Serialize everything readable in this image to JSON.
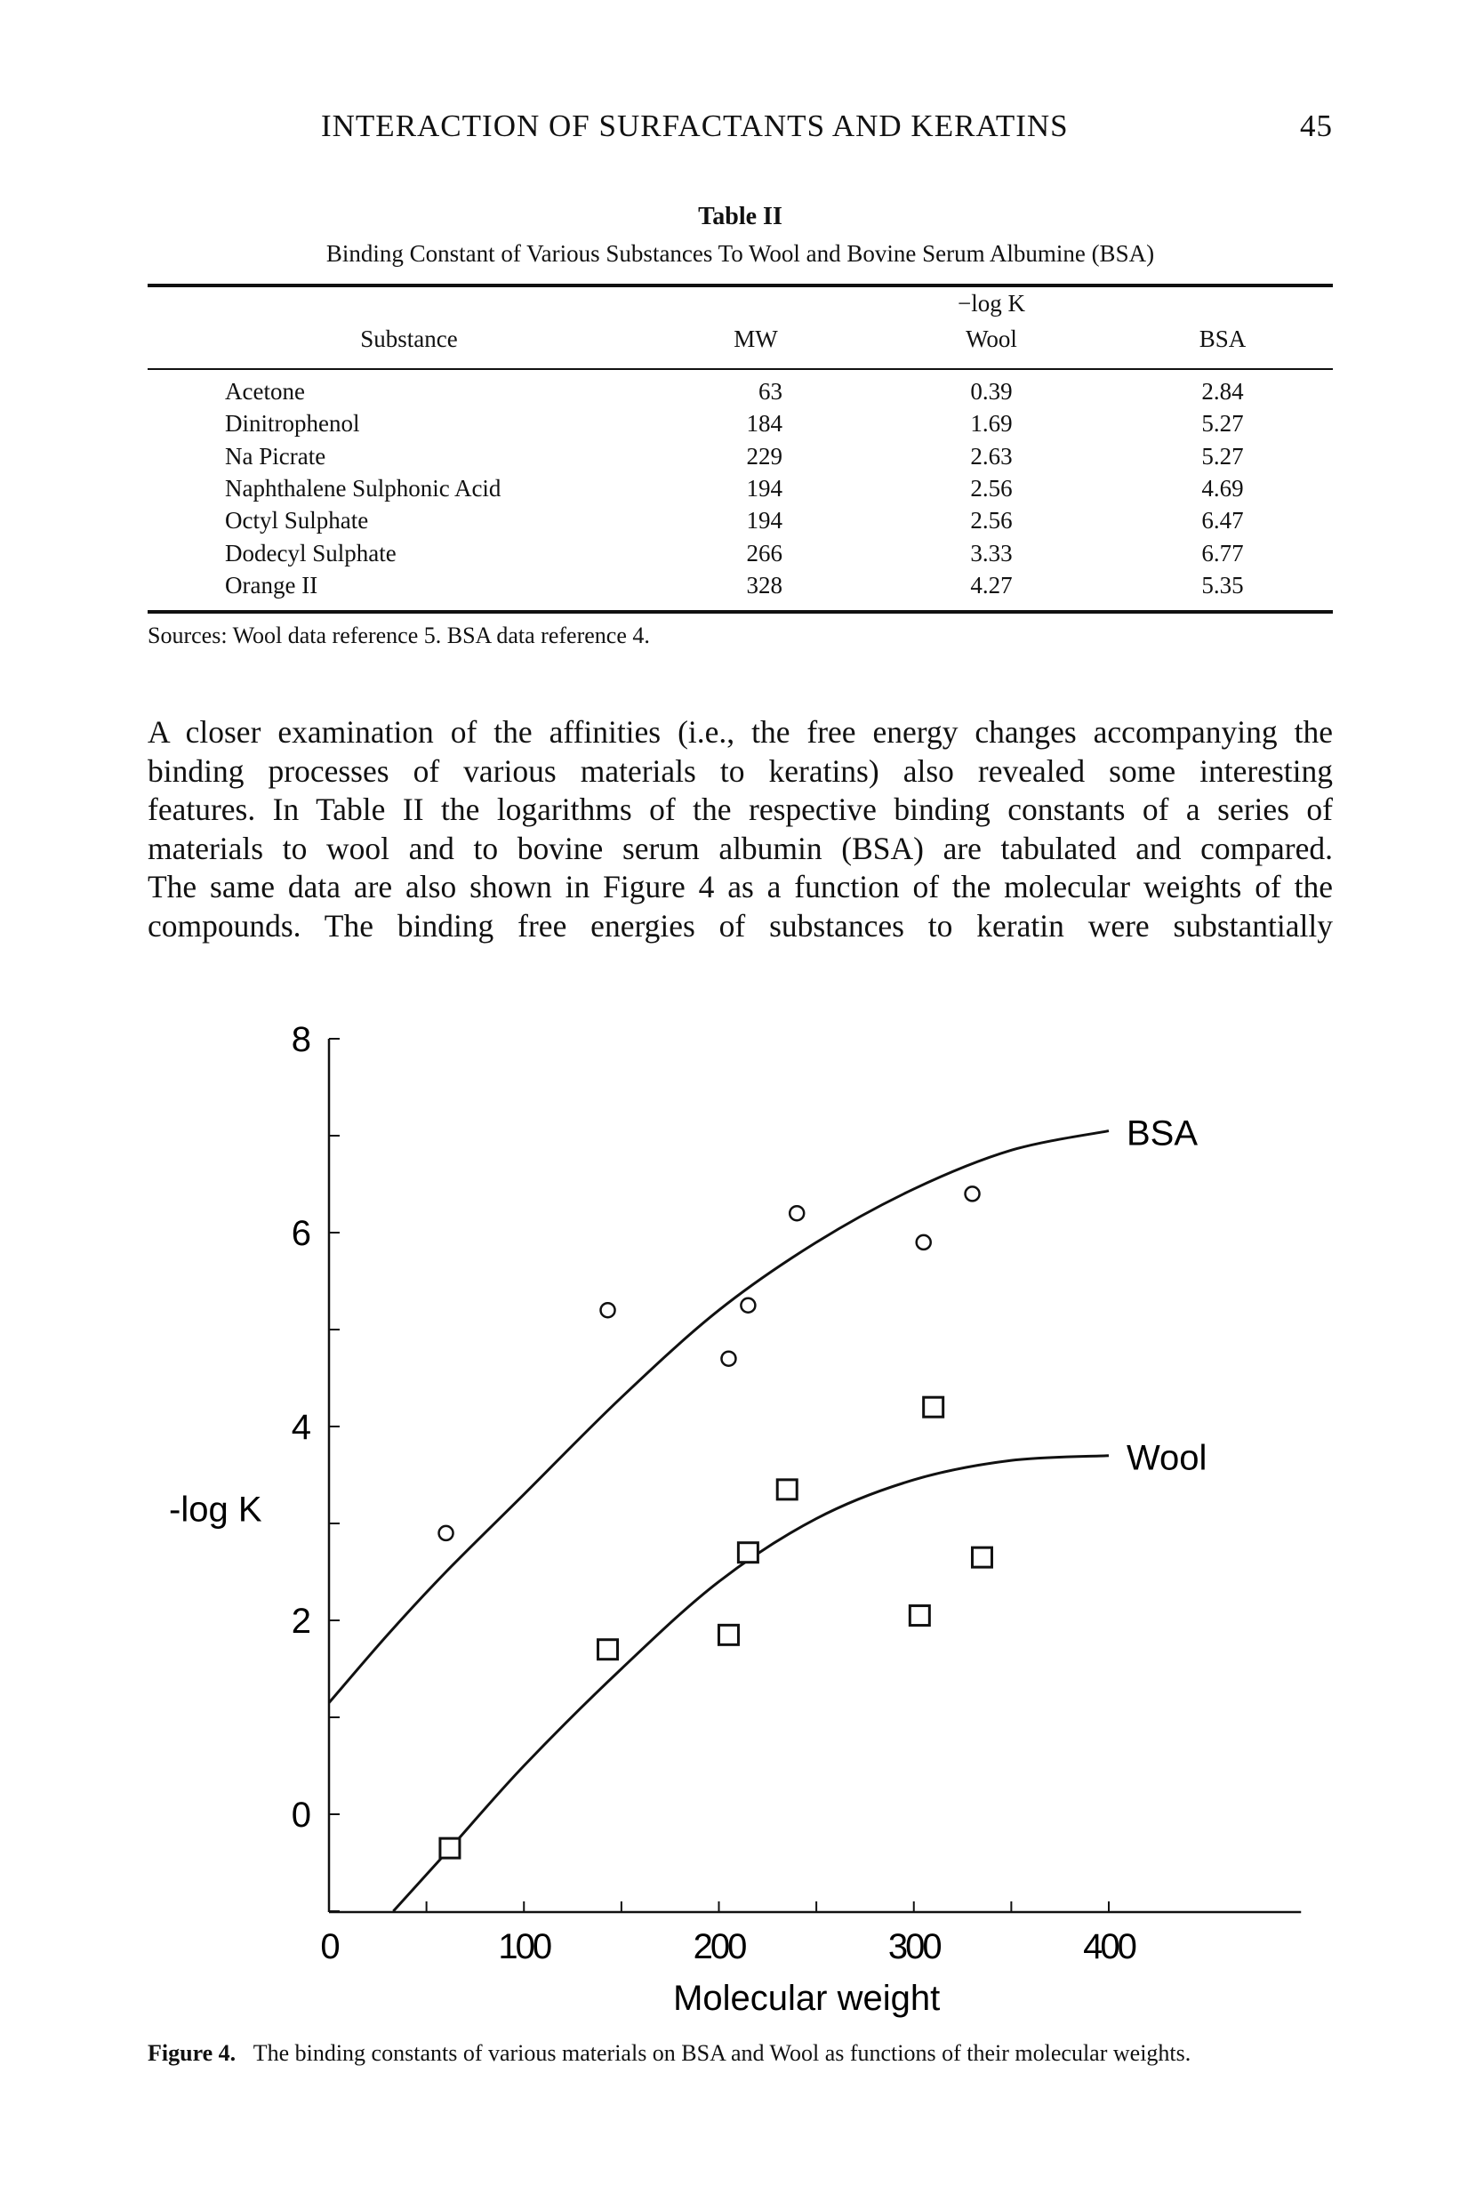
{
  "header": {
    "running_title": "INTERACTION OF SURFACTANTS AND KERATINS",
    "page_number": "45"
  },
  "table": {
    "title": "Table II",
    "subtitle": "Binding Constant of Various Substances To Wool and Bovine Serum Albumine (BSA)",
    "group_header": "−log K",
    "columns": [
      "Substance",
      "MW",
      "Wool",
      "BSA"
    ],
    "rows": [
      [
        "Acetone",
        "63",
        "0.39",
        "2.84"
      ],
      [
        "Dinitrophenol",
        "184",
        "1.69",
        "5.27"
      ],
      [
        "Na Picrate",
        "229",
        "2.63",
        "5.27"
      ],
      [
        "Naphthalene Sulphonic Acid",
        "194",
        "2.56",
        "4.69"
      ],
      [
        "Octyl Sulphate",
        "194",
        "2.56",
        "6.47"
      ],
      [
        "Dodecyl Sulphate",
        "266",
        "3.33",
        "6.77"
      ],
      [
        "Orange II",
        "328",
        "4.27",
        "5.35"
      ]
    ],
    "sources": "Sources: Wool data reference 5. BSA data reference 4."
  },
  "body": {
    "lines": [
      "A closer examination of the affinities (i.e., the free energy changes accompanying the",
      "binding processes of various materials to keratins) also revealed some interesting",
      "features. In Table II the logarithms of the respective binding constants of a series of",
      "materials to wool and to bovine serum albumin (BSA) are tabulated and compared.",
      "The same data are also shown in Figure 4 as a function of the molecular weights of the",
      "compounds. The binding free energies of substances to keratin were substantially"
    ]
  },
  "chart_data": {
    "type": "scatter",
    "title": "",
    "xlabel": "Molecular weight",
    "ylabel": "-log K",
    "xlim": [
      0,
      500
    ],
    "ylim": [
      -1,
      8
    ],
    "x_ticks": [
      "0",
      "100",
      "200",
      "300",
      "400"
    ],
    "y_ticks": [
      "0",
      "2",
      "4",
      "6",
      "8"
    ],
    "series": [
      {
        "name": "BSA",
        "marker": "circle",
        "points": [
          [
            60,
            2.9
          ],
          [
            143,
            5.2
          ],
          [
            205,
            4.7
          ],
          [
            215,
            5.25
          ],
          [
            240,
            6.2
          ],
          [
            305,
            5.9
          ],
          [
            330,
            6.4
          ]
        ],
        "curve": [
          [
            0,
            1.15
          ],
          [
            30,
            1.85
          ],
          [
            60,
            2.5
          ],
          [
            100,
            3.3
          ],
          [
            150,
            4.3
          ],
          [
            200,
            5.2
          ],
          [
            250,
            5.9
          ],
          [
            300,
            6.45
          ],
          [
            350,
            6.85
          ],
          [
            400,
            7.05
          ]
        ]
      },
      {
        "name": "Wool",
        "marker": "square",
        "points": [
          [
            62,
            -0.35
          ],
          [
            143,
            1.7
          ],
          [
            205,
            1.85
          ],
          [
            215,
            2.7
          ],
          [
            235,
            3.35
          ],
          [
            310,
            4.2
          ],
          [
            303,
            2.05
          ],
          [
            335,
            2.65
          ]
        ],
        "curve": [
          [
            33,
            -1
          ],
          [
            60,
            -0.4
          ],
          [
            100,
            0.5
          ],
          [
            150,
            1.5
          ],
          [
            200,
            2.4
          ],
          [
            250,
            3.05
          ],
          [
            300,
            3.45
          ],
          [
            350,
            3.65
          ],
          [
            400,
            3.7
          ]
        ]
      }
    ]
  },
  "caption": {
    "label": "Figure 4.",
    "text": "The binding constants of various materials on BSA and Wool as functions of their molecular weights."
  }
}
